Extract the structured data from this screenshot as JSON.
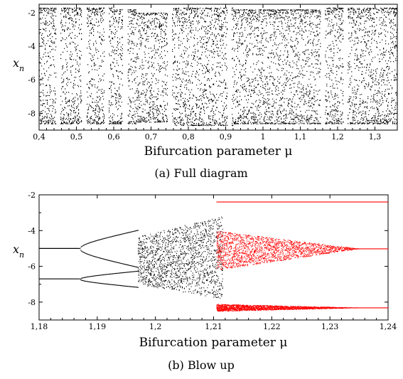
{
  "chart_data": [
    {
      "type": "scatter",
      "caption": "(a) Full diagram",
      "xlabel": "Bifurcation parameter μ",
      "ylabel": "x",
      "ylabel_subscript": "n",
      "xlim": [
        0.4,
        1.36
      ],
      "ylim": [
        -9,
        -1.5
      ],
      "xticks": [
        0.4,
        0.5,
        0.6,
        0.7,
        0.8,
        0.9,
        1,
        1.1,
        1.2,
        1.3
      ],
      "xtick_labels": [
        "0,4",
        "0,5",
        "0,6",
        "0,7",
        "0,8",
        "0,9",
        "1",
        "1,1",
        "1,2",
        "1,3"
      ],
      "yticks": [
        -8,
        -6,
        -4,
        -2
      ],
      "ytick_labels": [
        "-8",
        "-6",
        "-4",
        "-2"
      ],
      "grid": false,
      "series": [
        {
          "color": "#000000",
          "attractor_bands": [
            {
              "mu": [
                0.4,
                0.6
              ],
              "x_range": [
                -8.6,
                -1.7
              ]
            },
            {
              "mu": [
                0.6,
                0.66
              ],
              "x_range": [
                -8.6,
                -1.8
              ]
            },
            {
              "mu": [
                0.66,
                0.76
              ],
              "x_range": [
                -8.5,
                -2.0
              ]
            },
            {
              "mu": [
                0.76,
                0.92
              ],
              "x_range": [
                -8.7,
                -1.7
              ]
            },
            {
              "mu": [
                0.92,
                1.17
              ],
              "x_range": [
                -8.6,
                -1.8
              ]
            },
            {
              "mu": [
                1.17,
                1.36
              ],
              "x_range": [
                -8.6,
                -1.7
              ]
            }
          ],
          "periodic_windows_mu": [
            0.45,
            0.52,
            0.58,
            0.63,
            0.75,
            0.91,
            1.16,
            1.22
          ]
        }
      ]
    },
    {
      "type": "scatter",
      "caption": "(b) Blow up",
      "xlabel": "Bifurcation parameter μ",
      "ylabel": "x",
      "ylabel_subscript": "n",
      "xlim": [
        1.18,
        1.24
      ],
      "ylim": [
        -9,
        -2
      ],
      "xticks": [
        1.18,
        1.19,
        1.2,
        1.21,
        1.22,
        1.23,
        1.24
      ],
      "xtick_labels": [
        "1,18",
        "1,19",
        "1,2",
        "1,21",
        "1,22",
        "1,23",
        "1,24"
      ],
      "yticks": [
        -8,
        -6,
        -4,
        -2
      ],
      "ytick_labels": [
        "-8",
        "-6",
        "-4",
        "-2"
      ],
      "grid": false,
      "series": [
        {
          "color": "#000000",
          "mu_range": [
            1.18,
            1.2115
          ],
          "fixed_branches": [
            -5.0,
            -6.7
          ],
          "first_doubling_mu": 1.187,
          "chaos_onset_mu": 1.197,
          "chaos_end_mu": 1.2115,
          "chaos_envelope_top": -3.2,
          "chaos_envelope_bottom": -7.8
        },
        {
          "color": "#ff0000",
          "mu_range": [
            1.2105,
            1.24
          ],
          "constant_branch": -2.4,
          "upper_band": {
            "start_range": [
              -4.0,
              -6.2
            ],
            "converge_to": -5.0
          },
          "lower_band": {
            "start_range": [
              -8.1,
              -8.5
            ],
            "converge_to": -8.3
          },
          "band_merge_mu": 1.235
        }
      ]
    }
  ]
}
